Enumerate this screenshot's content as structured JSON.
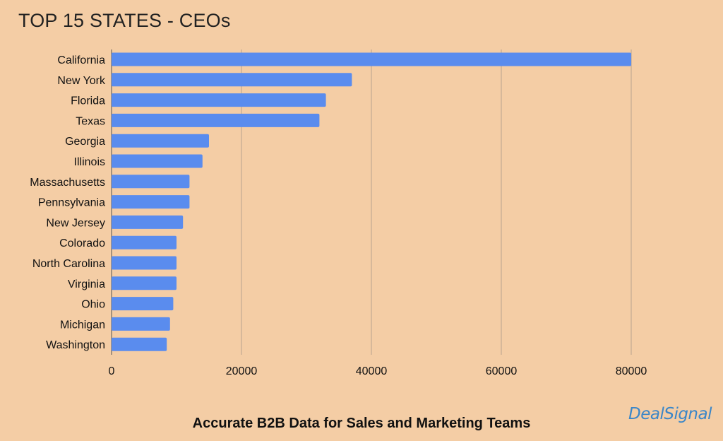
{
  "header": {
    "title": "TOP 15 STATES - CEOs"
  },
  "footer": {
    "text": "Accurate B2B Data for Sales and Marketing Teams"
  },
  "brand": {
    "logo_text": "DealSignal"
  },
  "colors": {
    "bar": "#5a8cee",
    "grid": "#b7a48e",
    "background": "#f4cda5"
  },
  "chart_data": {
    "type": "bar",
    "orientation": "horizontal",
    "title": "TOP 15 STATES - CEOs",
    "categories": [
      "California",
      "New York",
      "Florida",
      "Texas",
      "Georgia",
      "Illinois",
      "Massachusetts",
      "Pennsylvania",
      "New Jersey",
      "Colorado",
      "North Carolina",
      "Virginia",
      "Ohio",
      "Michigan",
      "Washington"
    ],
    "values": [
      80000,
      37000,
      33000,
      32000,
      15000,
      14000,
      12000,
      12000,
      11000,
      10000,
      10000,
      10000,
      9500,
      9000,
      8500
    ],
    "xlim": [
      0,
      80000
    ],
    "xticks": [
      0,
      20000,
      40000,
      60000,
      80000
    ],
    "xticklabels": [
      "0",
      "20000",
      "40000",
      "60000",
      "80000"
    ],
    "grid": true,
    "legend": "none"
  }
}
